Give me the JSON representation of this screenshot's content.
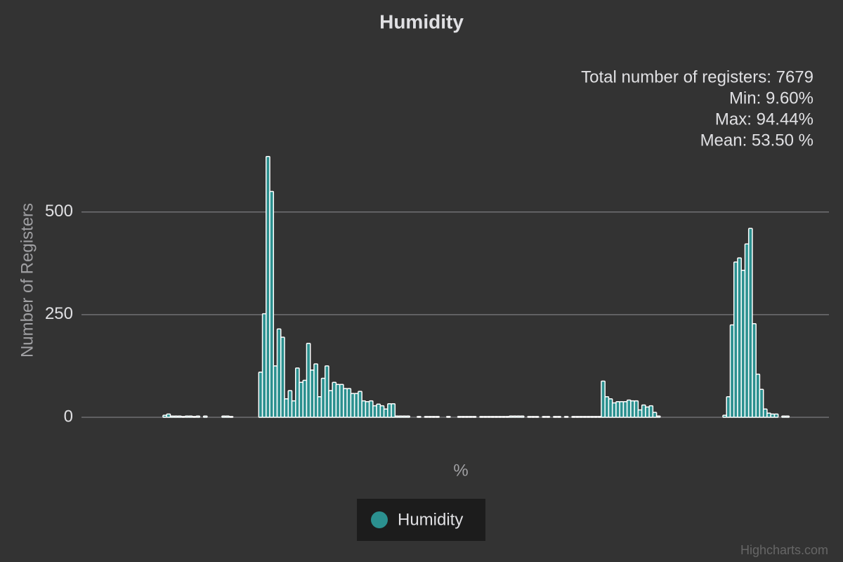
{
  "chart_data": {
    "type": "histogram",
    "title": "Humidity",
    "x_label": "%",
    "y_label": "Number of Registers",
    "annotations": [
      "Total number of registers: 7679",
      "Min: 9.60%",
      "Max: 94.44%",
      "Mean: 53.50 %"
    ],
    "credits": "Highcharts.com",
    "series": [
      {
        "name": "Humidity",
        "color": "#2b908f",
        "bins": [
          9.6,
          10.1,
          10.6,
          11.1,
          11.6,
          12.1,
          12.6,
          13.1,
          13.6,
          14.1,
          14.6,
          15.1,
          15.6,
          16.1,
          16.6,
          17.1,
          17.6,
          18.1,
          18.6,
          19.1,
          19.6,
          20.1,
          20.6,
          21.1,
          21.6,
          22.1,
          22.6,
          23.1,
          23.6,
          24.1,
          24.6,
          25.1,
          25.6,
          26.1,
          26.6,
          27.1,
          27.6,
          28.1,
          28.6,
          29.1,
          29.6,
          30.1,
          30.6,
          31.1,
          31.6,
          32.1,
          32.6,
          33.1,
          33.6,
          34.1,
          34.6,
          35.1,
          35.6,
          36.1,
          36.6,
          37.1,
          37.6,
          38.1,
          38.6,
          39.1,
          39.6,
          40.1,
          40.6,
          41.1,
          41.6,
          42.1,
          42.6,
          43.1,
          43.6,
          44.1,
          44.6,
          45.1,
          45.6,
          46.1,
          46.6,
          47.1,
          47.6,
          48.1,
          48.6,
          49.1,
          49.6,
          50.1,
          50.6,
          51.1,
          51.6,
          52.1,
          52.6,
          53.1,
          53.6,
          54.1,
          54.6,
          55.1,
          55.6,
          56.1,
          56.6,
          57.1,
          57.6,
          58.1,
          58.6,
          59.1,
          59.6,
          60.1,
          60.6,
          61.1,
          61.6,
          62.1,
          62.6,
          63.1,
          63.6,
          64.1,
          64.6,
          65.1,
          65.6,
          66.1,
          66.6,
          67.1,
          67.6,
          68.1,
          68.6,
          69.1,
          69.6,
          70.1,
          70.6,
          71.1,
          71.6,
          72.1,
          72.6,
          73.1,
          73.6,
          74.1,
          74.6,
          75.1,
          75.6,
          76.1,
          76.6,
          77.1,
          77.6,
          78.1,
          78.6,
          79.1,
          79.6,
          80.1,
          80.6,
          81.1,
          81.6,
          82.1,
          82.6,
          83.1,
          83.6,
          84.1,
          84.6,
          85.1,
          85.6,
          86.1,
          86.6,
          87.1,
          87.6,
          88.1,
          88.6,
          89.1,
          89.6,
          90.1,
          90.6,
          91.1,
          91.6,
          92.1,
          92.6,
          93.1,
          93.6,
          94.1,
          94.6
        ],
        "values": [
          5,
          8,
          3,
          3,
          3,
          2,
          3,
          3,
          2,
          3,
          0,
          3,
          0,
          0,
          0,
          0,
          3,
          3,
          2,
          0,
          0,
          0,
          0,
          0,
          0,
          0,
          110,
          252,
          635,
          550,
          125,
          215,
          195,
          45,
          65,
          40,
          120,
          85,
          90,
          180,
          115,
          130,
          50,
          95,
          125,
          65,
          85,
          80,
          80,
          70,
          70,
          58,
          58,
          63,
          40,
          38,
          40,
          28,
          32,
          28,
          20,
          33,
          33,
          3,
          3,
          3,
          3,
          0,
          0,
          2,
          0,
          2,
          2,
          2,
          2,
          0,
          0,
          2,
          0,
          0,
          2,
          2,
          2,
          2,
          2,
          0,
          2,
          2,
          2,
          2,
          2,
          2,
          2,
          2,
          3,
          3,
          3,
          3,
          0,
          2,
          2,
          2,
          0,
          2,
          2,
          0,
          2,
          2,
          0,
          2,
          0,
          2,
          2,
          2,
          2,
          2,
          2,
          2,
          2,
          88,
          50,
          45,
          35,
          38,
          38,
          38,
          42,
          40,
          40,
          18,
          30,
          25,
          28,
          12,
          3,
          0,
          0,
          0,
          0,
          0,
          0,
          0,
          0,
          0,
          0,
          0,
          0,
          0,
          0,
          0,
          0,
          0,
          5,
          50,
          225,
          378,
          388,
          358,
          422,
          460,
          228,
          105,
          68,
          20,
          10,
          8,
          8,
          0,
          3,
          3
        ]
      }
    ],
    "xlim": [
      -1.46,
      100
    ],
    "ylim": [
      0,
      650
    ],
    "yticks": [
      0,
      250,
      500
    ],
    "grid": true
  }
}
